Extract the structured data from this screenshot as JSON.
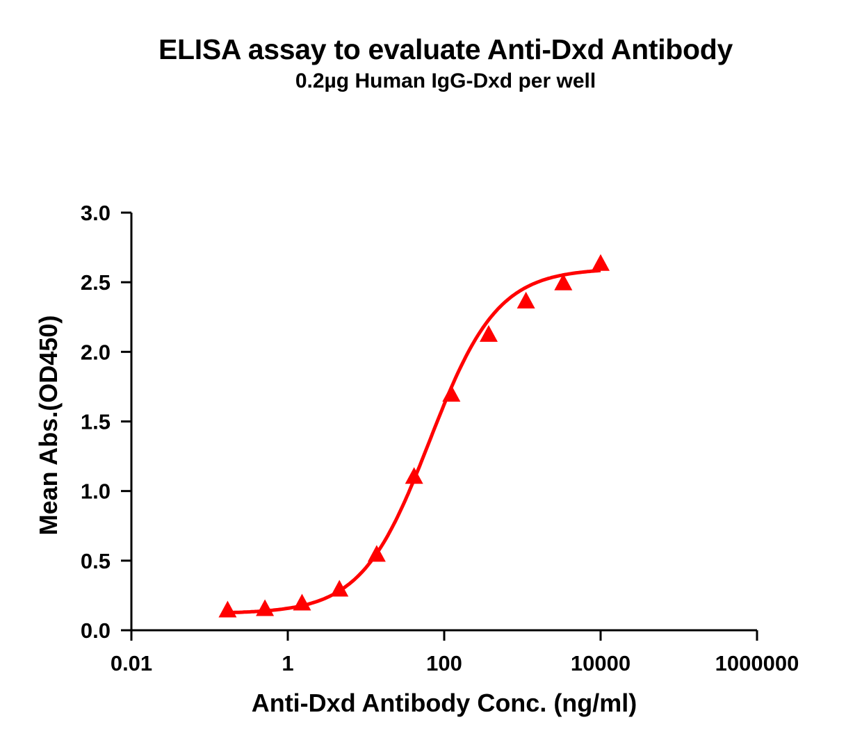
{
  "chart_data": {
    "type": "line",
    "title": "ELISA assay to evaluate Anti-Dxd Antibody",
    "subtitle": "0.2µg Human IgG-Dxd per well",
    "xlabel": "Anti-Dxd Antibody Conc. (ng/ml)",
    "ylabel": "Mean Abs.(OD450)",
    "xscale": "log",
    "xlim": [
      0.01,
      1000000
    ],
    "ylim": [
      0.0,
      3.0
    ],
    "x_ticks": [
      "0.01",
      "1",
      "100",
      "10000",
      "1000000"
    ],
    "y_ticks": [
      "0.0",
      "0.5",
      "1.0",
      "1.5",
      "2.0",
      "2.5",
      "3.0"
    ],
    "grid": false,
    "legend": null,
    "series": [
      {
        "name": "Anti-Dxd Antibody",
        "color": "#ff0000",
        "marker": "triangle",
        "fit": "4PL sigmoidal curve",
        "x": [
          0.17,
          0.51,
          1.52,
          4.57,
          13.7,
          41.2,
          123.5,
          370.4,
          1111,
          3333,
          10000
        ],
        "values": [
          0.14,
          0.15,
          0.19,
          0.29,
          0.54,
          1.1,
          1.69,
          2.12,
          2.36,
          2.49,
          2.63
        ]
      }
    ]
  }
}
